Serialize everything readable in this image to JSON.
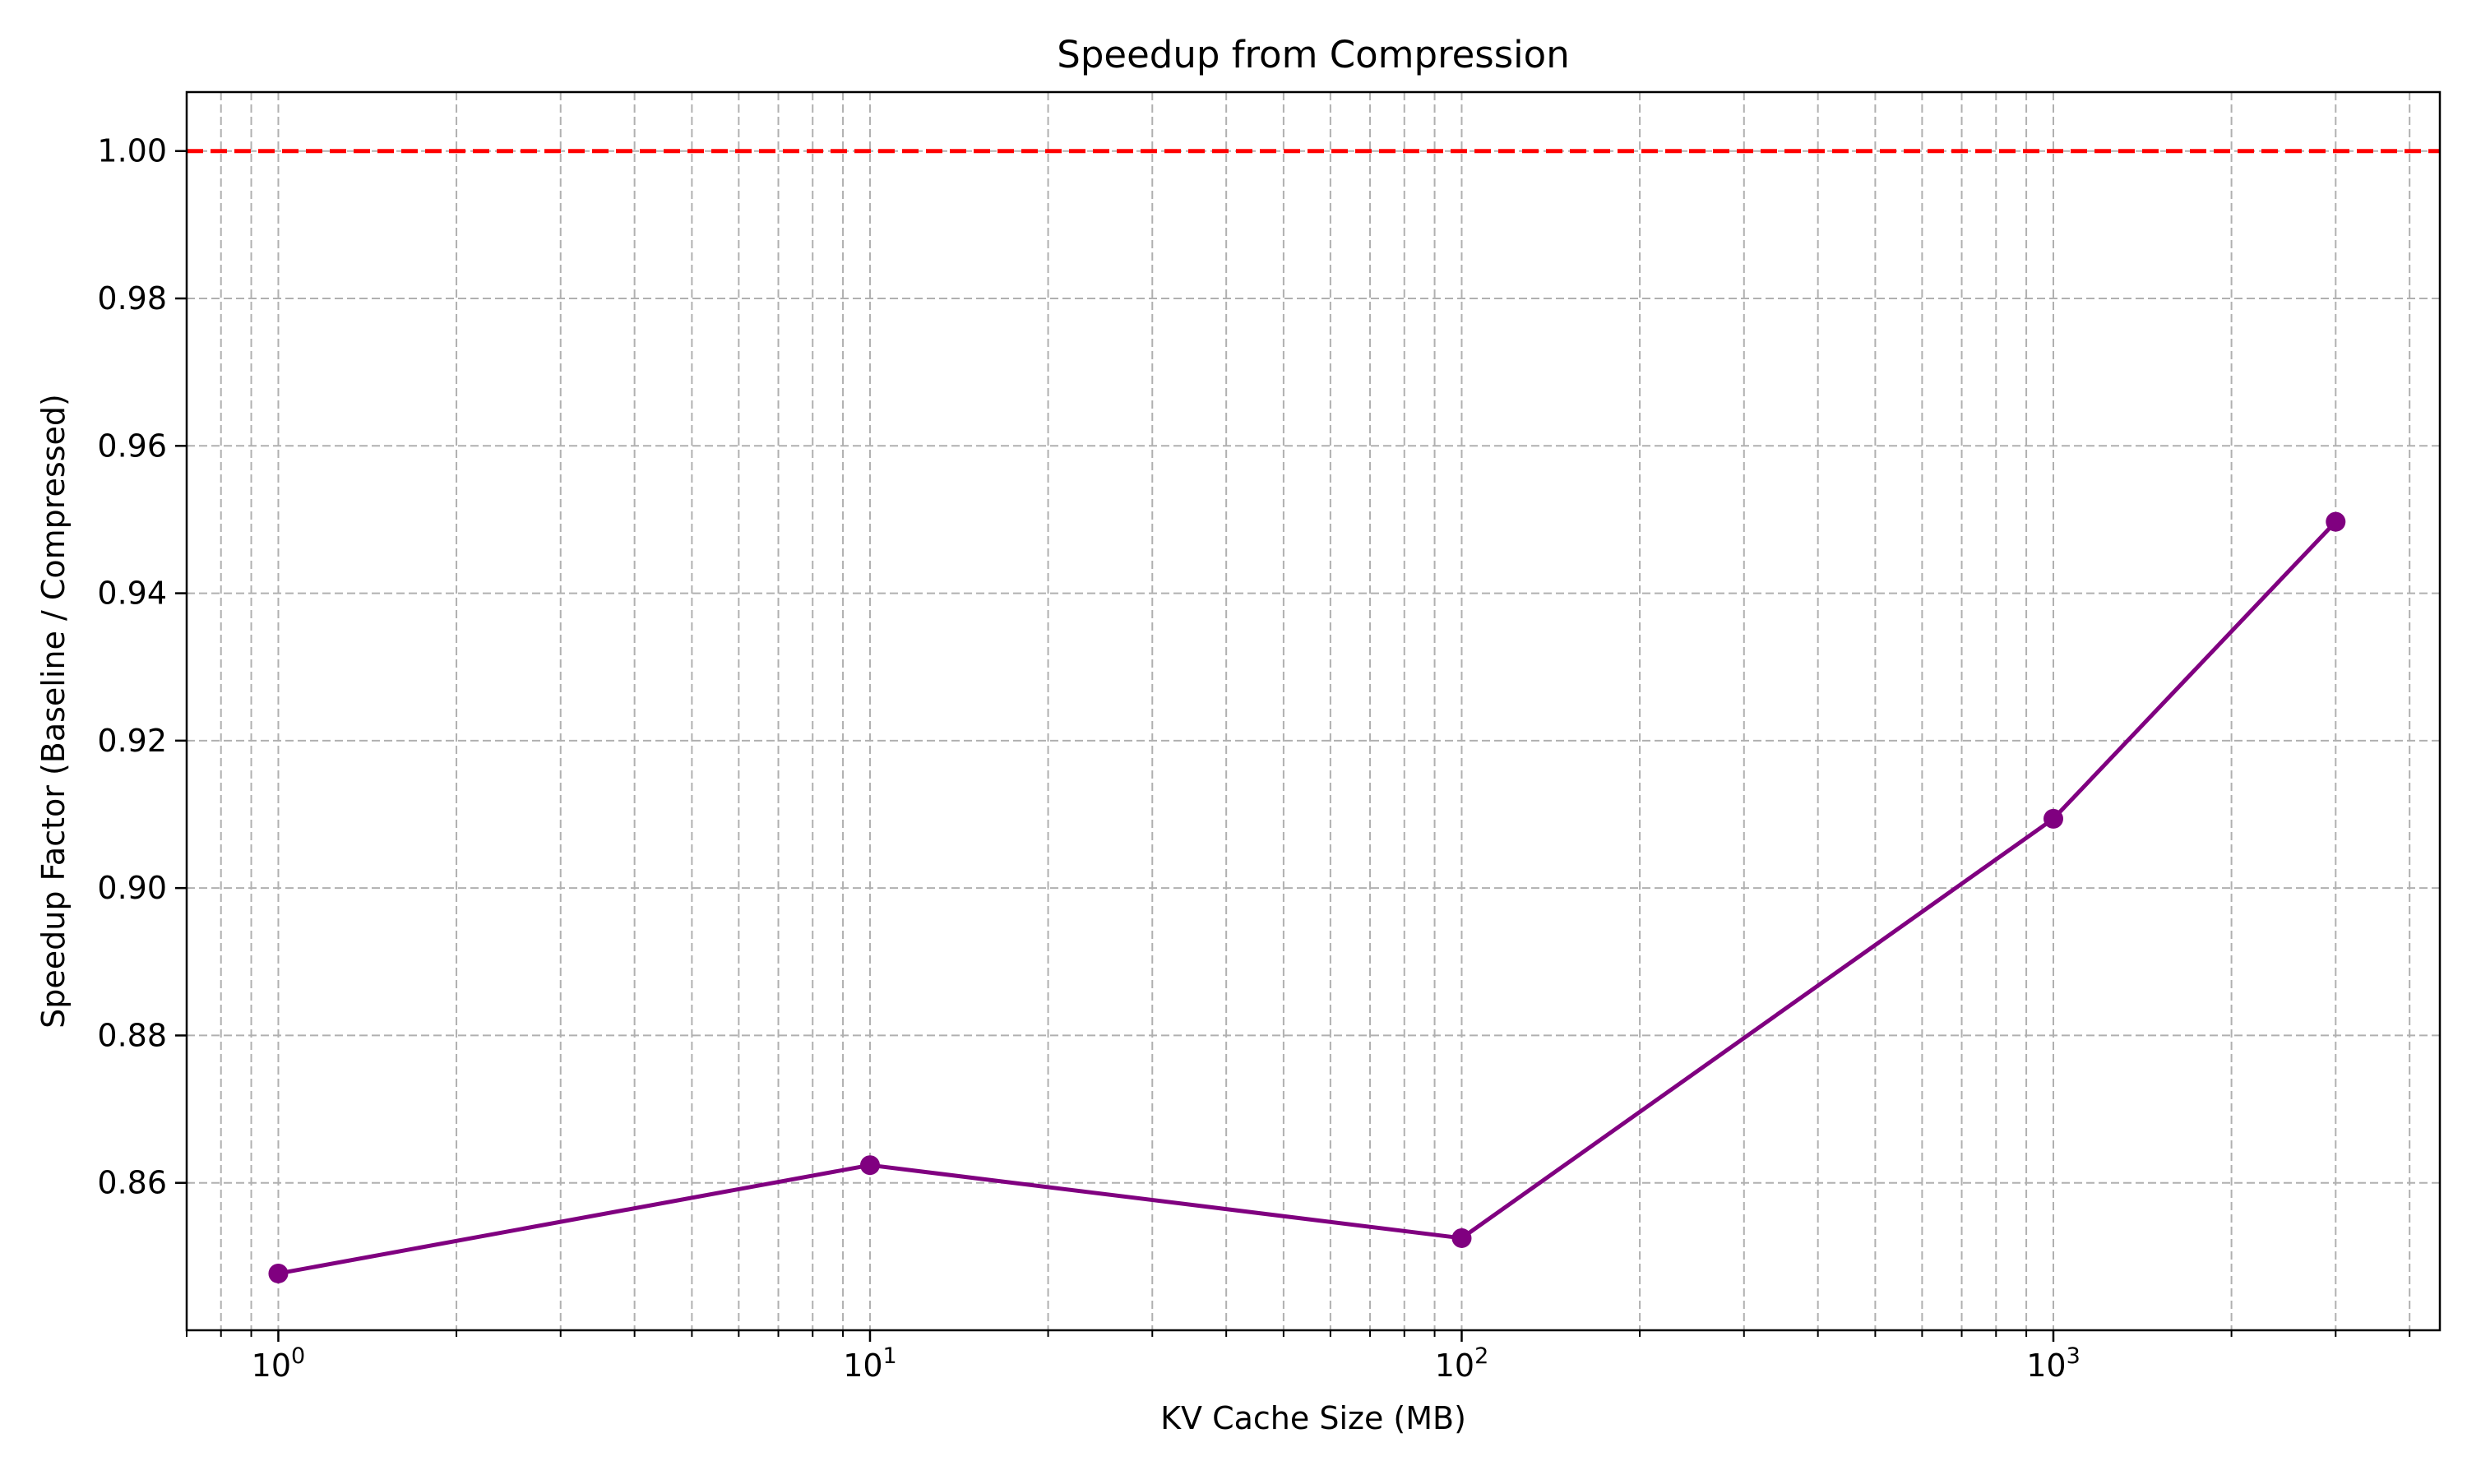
{
  "chart_data": {
    "type": "line",
    "title": "Speedup from Compression",
    "xlabel": "KV Cache Size (MB)",
    "ylabel": "Speedup Factor (Baseline / Compressed)",
    "x_scale": "log",
    "xlim": [
      0.7,
      4500
    ],
    "ylim": [
      0.84,
      1.008
    ],
    "x_ticks": [
      {
        "value": 1,
        "base": "10",
        "exp": "0"
      },
      {
        "value": 10,
        "base": "10",
        "exp": "1"
      },
      {
        "value": 100,
        "base": "10",
        "exp": "2"
      },
      {
        "value": 1000,
        "base": "10",
        "exp": "3"
      }
    ],
    "y_ticks": [
      {
        "value": 0.86,
        "label": "0.86"
      },
      {
        "value": 0.88,
        "label": "0.88"
      },
      {
        "value": 0.9,
        "label": "0.90"
      },
      {
        "value": 0.92,
        "label": "0.92"
      },
      {
        "value": 0.94,
        "label": "0.94"
      },
      {
        "value": 0.96,
        "label": "0.96"
      },
      {
        "value": 0.98,
        "label": "0.98"
      },
      {
        "value": 1.0,
        "label": "1.00"
      }
    ],
    "grid": true,
    "series": [
      {
        "color": "#800080",
        "marker": "circle",
        "points": [
          {
            "x": 1,
            "y": 0.8477
          },
          {
            "x": 10,
            "y": 0.8624
          },
          {
            "x": 100,
            "y": 0.8525
          },
          {
            "x": 1000,
            "y": 0.9094
          },
          {
            "x": 3000,
            "y": 0.9497
          }
        ]
      }
    ],
    "reference_line": {
      "y": 1.0,
      "color": "#ff0000",
      "style": "dashed"
    }
  }
}
